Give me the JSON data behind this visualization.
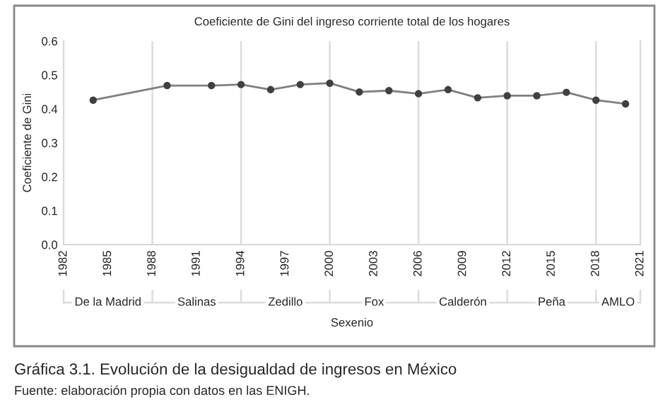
{
  "chart_data": {
    "type": "line",
    "title": "Coeficiente de Gini del ingreso corriente total de los hogares",
    "xlabel": "Sexenio",
    "ylabel": "Coeficiente de Gini",
    "x": [
      1984,
      1989,
      1992,
      1994,
      1996,
      1998,
      2000,
      2002,
      2004,
      2006,
      2008,
      2010,
      2012,
      2014,
      2016,
      2018,
      2020
    ],
    "series": [
      {
        "color": "#7f7f7f",
        "values": [
          0.426,
          0.469,
          0.469,
          0.472,
          0.457,
          0.472,
          0.476,
          0.45,
          0.454,
          0.445,
          0.457,
          0.433,
          0.439,
          0.439,
          0.449,
          0.426,
          0.415
        ]
      }
    ],
    "marker": "circle",
    "line_style": "solid",
    "xlim": [
      1982,
      2021
    ],
    "xticks": [
      1982,
      1985,
      1988,
      1991,
      1994,
      1997,
      2000,
      2003,
      2006,
      2009,
      2012,
      2015,
      2018,
      2021
    ],
    "ylim": [
      0,
      0.6
    ],
    "yticks": [
      {
        "value": 0,
        "label": "0.0"
      },
      0.1,
      0.2,
      0.3,
      0.4,
      0.5,
      0.6
    ],
    "ref_lines": [
      {
        "axis": "x",
        "value": 1988
      },
      {
        "axis": "x",
        "value": 1994
      },
      {
        "axis": "x",
        "value": 2000
      },
      {
        "axis": "x",
        "value": 2006
      },
      {
        "axis": "x",
        "value": 2012
      },
      {
        "axis": "x",
        "value": 2018
      }
    ],
    "annotations": [
      "De la Madrid",
      "Salinas",
      "Zedillo",
      "Fox",
      "Calderón",
      "Peña",
      "AMLO",
      "Gráfica 3.1. Evolución de la desigualdad de ingresos en México",
      "Fuente: elaboración propia con datos en las ENIGH."
    ]
  }
}
